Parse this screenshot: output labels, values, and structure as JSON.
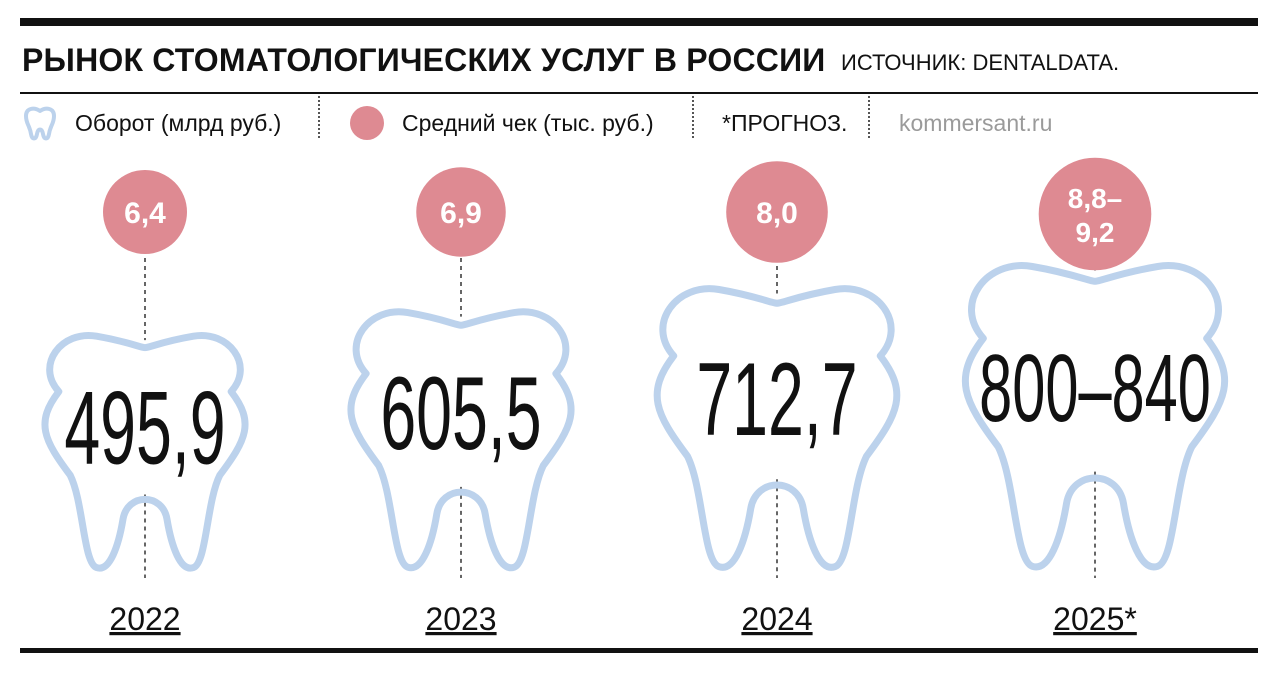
{
  "header": {
    "title": "РЫНОК СТОМАТОЛОГИЧЕСКИХ УСЛУГ В РОССИИ",
    "source": "ИСТОЧНИК: DENTALDATA."
  },
  "legend": {
    "turnover_label": "Оборот (млрд руб.)",
    "check_label": "Средний чек (тыс. руб.)",
    "forecast_note": "*ПРОГНОЗ.",
    "site": "kommersant.ru"
  },
  "colors": {
    "tooth_outline": "#bcd2ec",
    "check_circle": "#de8a92",
    "text": "#111111"
  },
  "chart_data": {
    "type": "pictogram",
    "categories": [
      "2022",
      "2023",
      "2024",
      "2025*"
    ],
    "series": [
      {
        "name": "Оборот (млрд руб.)",
        "values": [
          495.9,
          605.5,
          712.7,
          [
            800,
            840
          ]
        ],
        "labels": [
          "495,9",
          "605,5",
          "712,7",
          "800–840"
        ]
      },
      {
        "name": "Средний чек (тыс. руб.)",
        "values": [
          6.4,
          6.9,
          8.0,
          [
            8.8,
            9.2
          ]
        ],
        "labels": [
          "6,4",
          "6,9",
          "8,0",
          "8,8–9,2"
        ]
      }
    ]
  }
}
